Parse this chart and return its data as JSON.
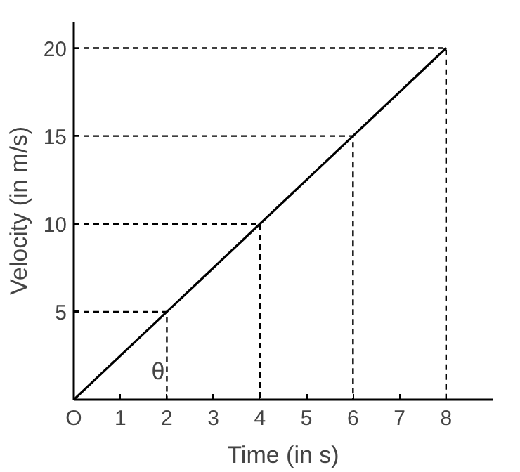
{
  "chart_data": {
    "type": "line",
    "xlabel": "Time (in s)",
    "ylabel": "Velocity (in m/s)",
    "xlim": [
      0,
      9
    ],
    "ylim": [
      0,
      21.5
    ],
    "xticks": [
      {
        "value": 0,
        "label": "O"
      },
      1,
      2,
      3,
      4,
      5,
      6,
      7,
      8
    ],
    "yticks": [
      {
        "value": 0,
        "label": null
      },
      5,
      10,
      15,
      20
    ],
    "grid": false,
    "marker": "none",
    "series": [
      {
        "x": [
          0,
          2,
          4,
          6,
          8
        ],
        "values": [
          0,
          5,
          10,
          15,
          20
        ],
        "color": "#000000",
        "line_style": "solid"
      },
      {
        "x": [
          0,
          2,
          2
        ],
        "values": [
          5,
          5,
          0
        ],
        "color": "#000000",
        "line_style": "dashed"
      },
      {
        "x": [
          0,
          4,
          4
        ],
        "values": [
          10,
          10,
          0
        ],
        "color": "#000000",
        "line_style": "dashed"
      },
      {
        "x": [
          0,
          6,
          6
        ],
        "values": [
          15,
          15,
          0
        ],
        "color": "#000000",
        "line_style": "dashed"
      },
      {
        "x": [
          0,
          8,
          8
        ],
        "values": [
          20,
          20,
          0
        ],
        "color": "#000000",
        "line_style": "dashed"
      }
    ],
    "annotations": [
      "θ"
    ]
  }
}
